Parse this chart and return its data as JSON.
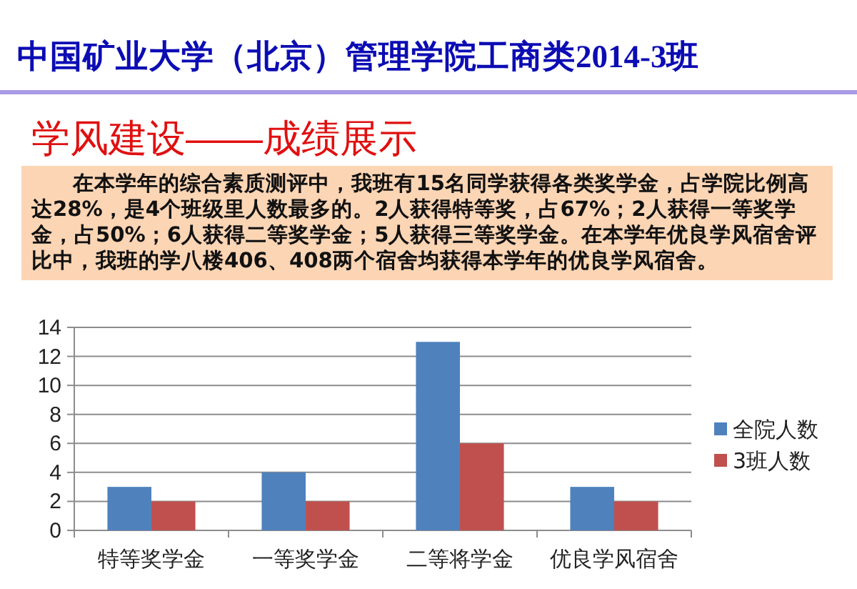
{
  "chart_data": {
    "type": "bar",
    "title": "中国矿业大学（北京）管理学院工商类2014-3班",
    "subtitle": "学风建设——成绩展示",
    "annotations": [
      "在本学年的综合素质测评中，我班有15名同学获得各类奖学金，占学院比例高达28%，是4个班级里人数最多的。2人获得特等奖，占67%；2人获得一等奖学金，占50%；6人获得二等奖学金；5人获得三等奖学金。在本学年优良学风宿舍评比中，我班的学八楼406、408两个宿舍均获得本学年的优良学风宿舍。"
    ],
    "categories": [
      "特等奖学金",
      "一等奖学金",
      "二等将学金",
      "优良学风宿舍"
    ],
    "series": [
      {
        "name": "全院人数",
        "color": "#4f81bd",
        "values": [
          3,
          4,
          13,
          3
        ]
      },
      {
        "name": "3班人数",
        "color": "#c0504d",
        "values": [
          2,
          2,
          6,
          2
        ]
      }
    ],
    "ylim": [
      0,
      14
    ],
    "yticks": [
      0,
      2,
      4,
      6,
      8,
      10,
      12,
      14
    ],
    "grid": "y",
    "legend": "right"
  }
}
